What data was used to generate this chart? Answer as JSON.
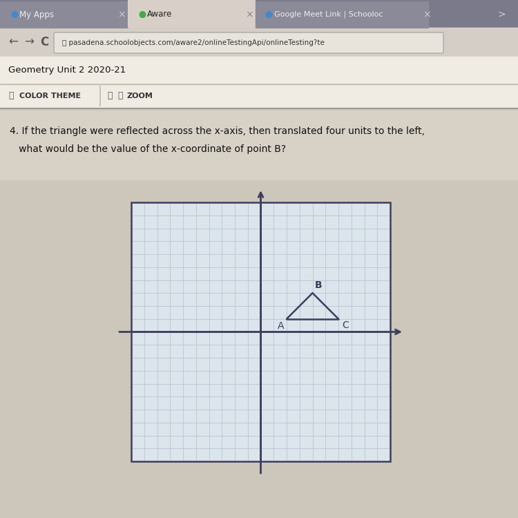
{
  "title_line1": "4. If the triangle were reflected across the x-axis, then translated four units to the left,",
  "title_line2": "   what would be the value of the x-coordinate of point B?",
  "header1": "Geometry Unit 2 2020-21",
  "browser_bar": "pasadena.schoolobjects.com/aware2/onlineTestingApi/onlineTesting?te",
  "grid_range": [
    -10,
    10
  ],
  "axis_color": "#3d3d5c",
  "grid_color": "#b0c0d0",
  "triangle_A": [
    2,
    1
  ],
  "triangle_B": [
    4,
    3
  ],
  "triangle_C": [
    6,
    1
  ],
  "triangle_color": "#3d3d5c",
  "label_A": "A",
  "label_B": "B",
  "label_C": "C",
  "bg_main": "#c8c0b0",
  "bg_chrome_tab": "#9a9a9a",
  "bg_chrome_bar": "#b0b0b0",
  "bg_white_area": "#e8e4dc",
  "bg_plot": "#dce4ec",
  "tab_active": "#d8d0c8",
  "border_color": "#3d3d5c"
}
